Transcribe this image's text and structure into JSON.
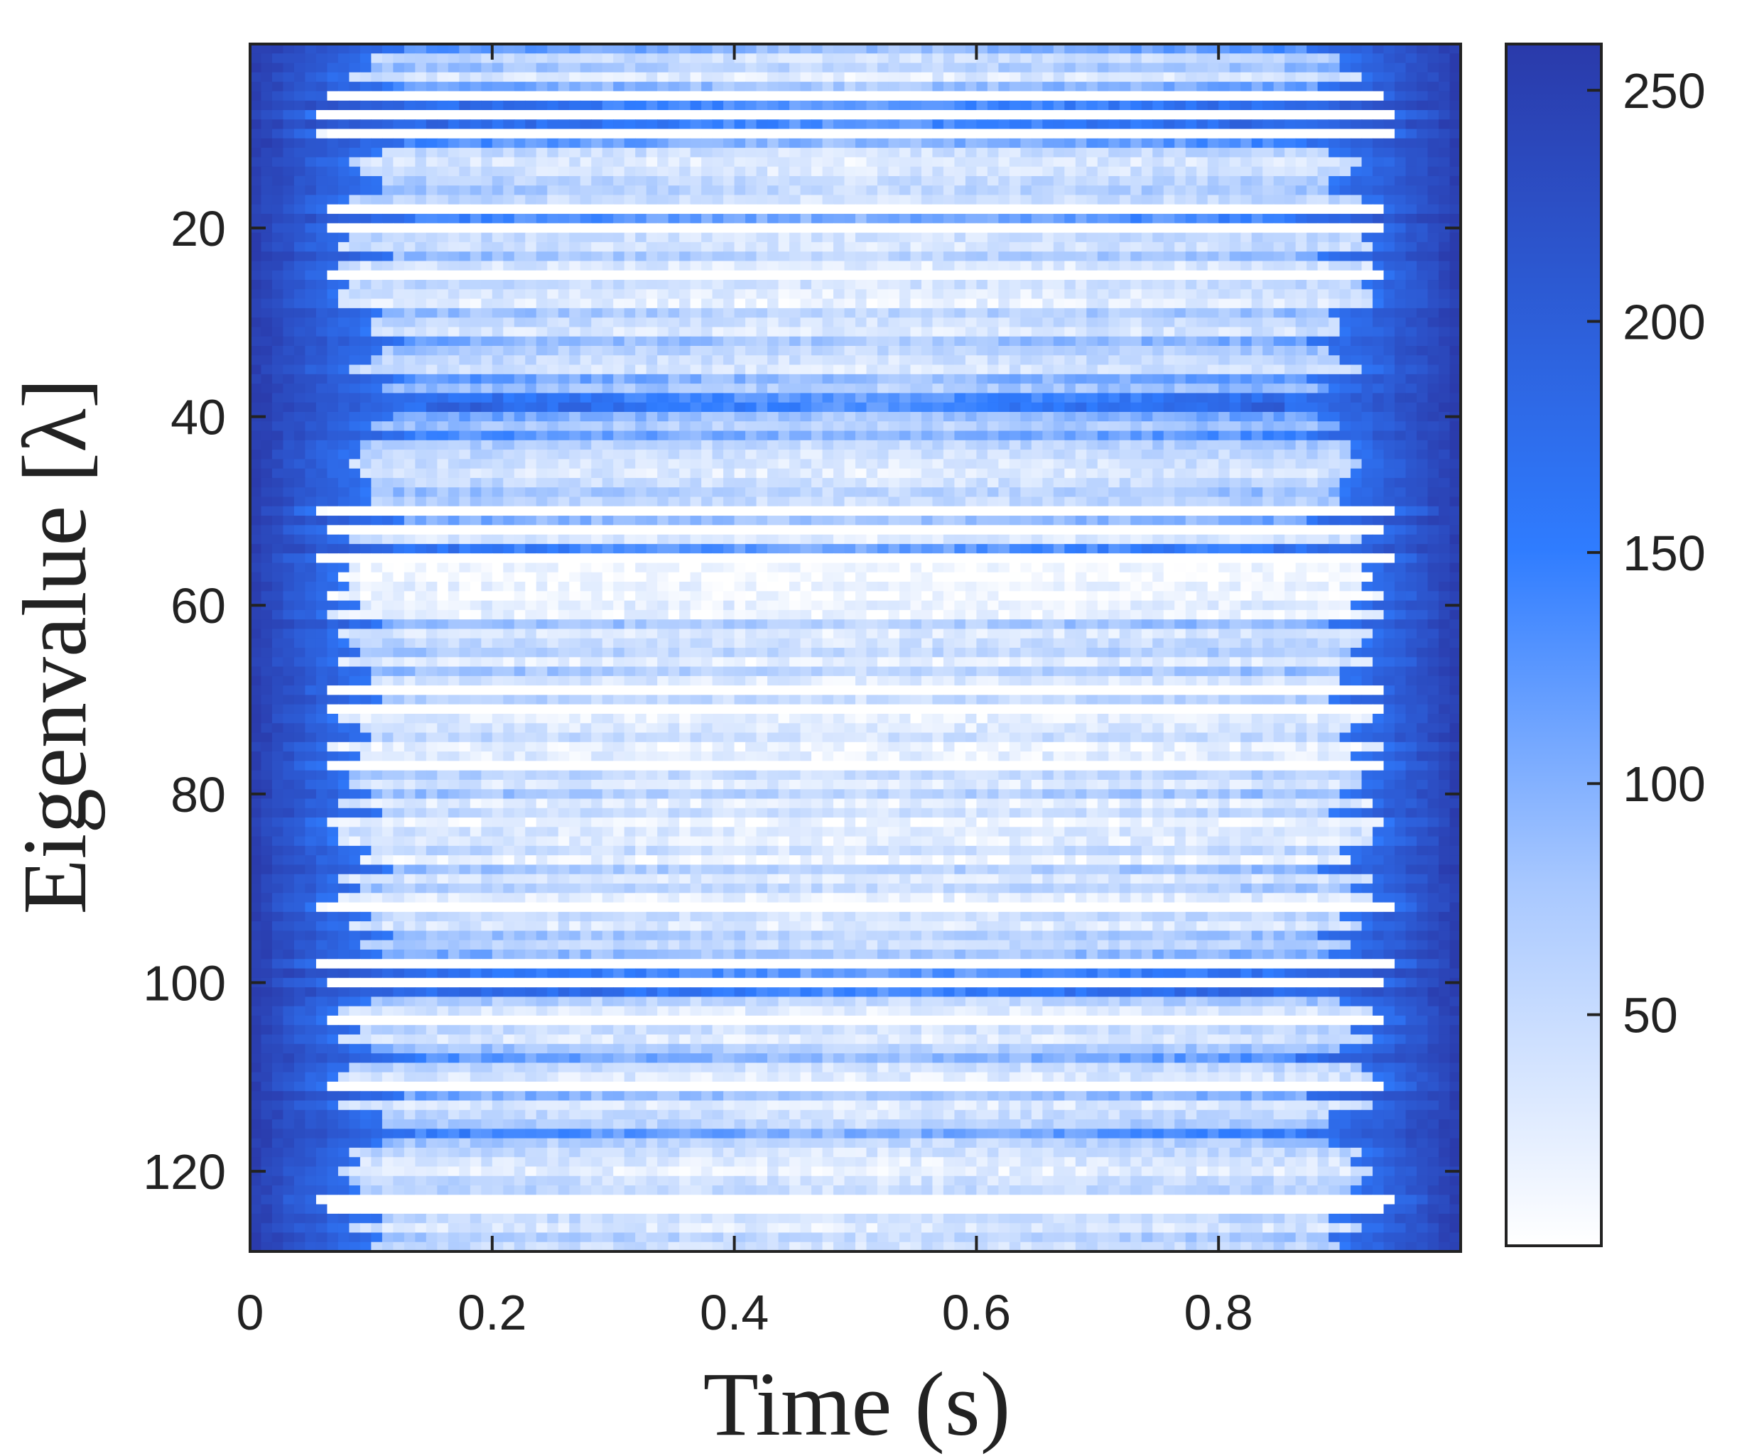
{
  "chart_data": {
    "type": "heatmap",
    "title": "",
    "xlabel": "Time (s)",
    "ylabel": "Eigenvalue [λ]",
    "x_range": [
      0,
      1
    ],
    "y_range": [
      1,
      128
    ],
    "y_direction": "top-to-bottom",
    "x_ticks": [
      {
        "value": 0,
        "label": "0"
      },
      {
        "value": 0.2,
        "label": "0.2"
      },
      {
        "value": 0.4,
        "label": "0.4"
      },
      {
        "value": 0.6,
        "label": "0.6"
      },
      {
        "value": 0.8,
        "label": "0.8"
      }
    ],
    "y_ticks": [
      {
        "value": 20,
        "label": "20"
      },
      {
        "value": 40,
        "label": "40"
      },
      {
        "value": 60,
        "label": "60"
      },
      {
        "value": 80,
        "label": "80"
      },
      {
        "value": 100,
        "label": "100"
      },
      {
        "value": 120,
        "label": "120"
      }
    ],
    "colorbar": {
      "range": [
        0,
        260
      ],
      "ticks": [
        {
          "value": 50,
          "label": "50"
        },
        {
          "value": 100,
          "label": "100"
        },
        {
          "value": 150,
          "label": "150"
        },
        {
          "value": 200,
          "label": "200"
        },
        {
          "value": 250,
          "label": "250"
        }
      ],
      "colormap": [
        "#ffffff",
        "#a8c8ff",
        "#2f7cff",
        "#2a3aaa"
      ]
    },
    "cells": {
      "rows": 128,
      "cols": 110,
      "description": "row bands of higher counts; counts are near maximum (~255) at early and late times and low (~5-40) in the middle of the time range",
      "row_band_center_values": [
        130,
        60,
        90,
        40,
        120,
        0,
        180,
        0,
        190,
        0,
        140,
        60,
        40,
        50,
        70,
        80,
        60,
        0,
        150,
        0,
        60,
        50,
        90,
        40,
        0,
        60,
        40,
        30,
        90,
        60,
        40,
        110,
        80,
        60,
        50,
        130,
        100,
        180,
        200,
        120,
        90,
        140,
        80,
        60,
        50,
        40,
        60,
        90,
        70,
        0,
        110,
        0,
        40,
        170,
        0,
        10,
        5,
        20,
        10,
        30,
        20,
        100,
        40,
        60,
        80,
        30,
        90,
        40,
        0,
        70,
        0,
        30,
        40,
        60,
        20,
        30,
        0,
        70,
        40,
        90,
        30,
        60,
        20,
        40,
        30,
        60,
        20,
        90,
        40,
        80,
        30,
        0,
        60,
        40,
        90,
        70,
        110,
        0,
        170,
        0,
        200,
        80,
        40,
        0,
        60,
        40,
        90,
        130,
        60,
        40,
        0,
        110,
        40,
        60,
        80,
        150,
        80,
        60,
        40,
        30,
        60,
        70,
        0,
        0,
        60,
        40,
        80,
        60
      ]
    }
  }
}
